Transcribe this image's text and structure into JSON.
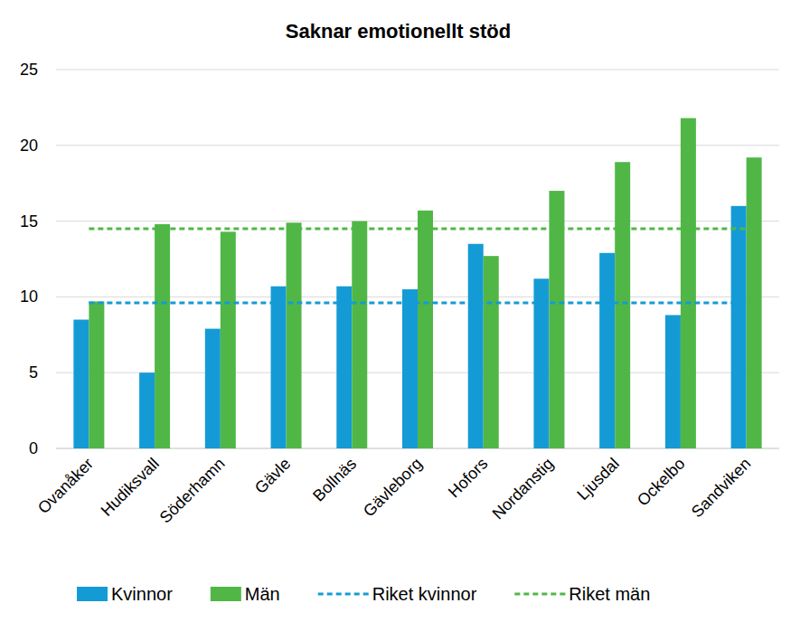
{
  "chart_data": {
    "type": "bar",
    "title": "Saknar emotionellt stöd",
    "categories": [
      "Ovanåker",
      "Hudiksvall",
      "Söderhamn",
      "Gävle",
      "Bollnäs",
      "Gävleborg",
      "Hofors",
      "Nordanstig",
      "Ljusdal",
      "Ockelbo",
      "Sandviken"
    ],
    "series": [
      {
        "name": "Kvinnor",
        "color": "#149bd5",
        "type": "bar",
        "values": [
          8.5,
          5.0,
          7.9,
          10.7,
          10.7,
          10.5,
          13.5,
          11.2,
          12.9,
          8.8,
          16.0
        ]
      },
      {
        "name": "Män",
        "color": "#50b747",
        "type": "bar",
        "values": [
          9.7,
          14.8,
          14.3,
          14.9,
          15.0,
          15.7,
          12.7,
          17.0,
          18.9,
          21.8,
          19.2
        ]
      },
      {
        "name": "Riket kvinnor",
        "color": "#149bd5",
        "type": "line",
        "line_style": "dashed",
        "values": [
          9.6,
          9.6,
          9.6,
          9.6,
          9.6,
          9.6,
          9.6,
          9.6,
          9.6,
          9.6,
          9.6
        ]
      },
      {
        "name": "Riket män",
        "color": "#50b747",
        "type": "line",
        "line_style": "dashed",
        "values": [
          14.5,
          14.5,
          14.5,
          14.5,
          14.5,
          14.5,
          14.5,
          14.5,
          14.5,
          14.5,
          14.5
        ]
      }
    ],
    "ylim": [
      0,
      25
    ],
    "yticks": [
      0,
      5,
      10,
      15,
      20,
      25
    ],
    "grid": true,
    "legend": "bottom"
  }
}
